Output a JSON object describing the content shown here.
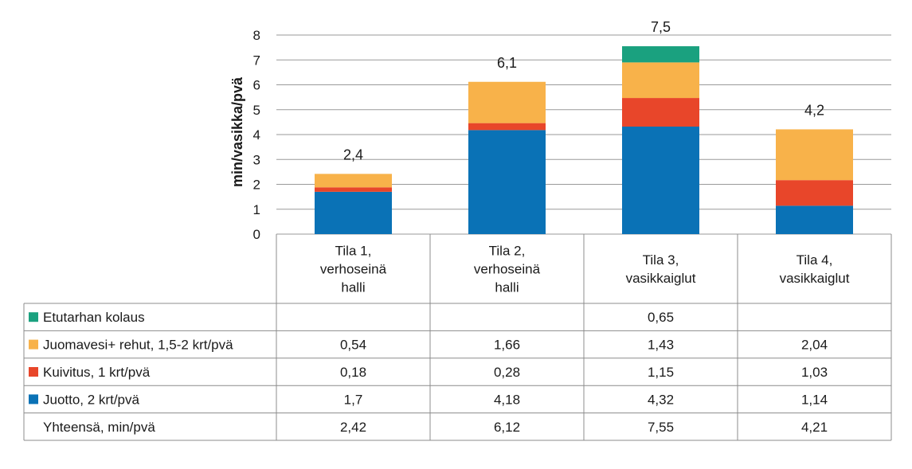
{
  "chart_data": {
    "type": "bar",
    "stacked": true,
    "ylabel": "min/vasikka/pvä",
    "ylim": [
      0,
      8
    ],
    "yticks": [
      "0",
      "1",
      "2",
      "3",
      "4",
      "5",
      "6",
      "7",
      "8"
    ],
    "grid": true,
    "categories": [
      "Tila 1, verhoseinä halli",
      "Tila 2, verhoseinä halli",
      "Tila 3, vasikkaiglut",
      "Tila 4, vasikkaiglut"
    ],
    "category_lines": [
      [
        "Tila 1,",
        "verhoseinä",
        "halli"
      ],
      [
        "Tila 2,",
        "verhoseinä",
        "halli"
      ],
      [
        "Tila 3,",
        "vasikkaiglut"
      ],
      [
        "Tila 4,",
        "vasikkaiglut"
      ]
    ],
    "totals_labels": [
      "2,4",
      "6,1",
      "7,5",
      "4,2"
    ],
    "series": [
      {
        "name": "Juotto, 2 krt/pvä",
        "color": "#0a72b6",
        "values": [
          1.7,
          4.18,
          4.32,
          1.14
        ]
      },
      {
        "name": "Kuivitus,  1 krt/pvä",
        "color": "#e8462a",
        "values": [
          0.18,
          0.28,
          1.15,
          1.03
        ]
      },
      {
        "name": "Juomavesi+ rehut, 1,5-2 krt/pvä",
        "color": "#f8b24a",
        "values": [
          0.54,
          1.66,
          1.43,
          2.04
        ]
      },
      {
        "name": "Etutarhan kolaus",
        "color": "#1aa17f",
        "values": [
          null,
          null,
          0.65,
          null
        ]
      }
    ],
    "table": {
      "rows": [
        {
          "label": "Etutarhan kolaus",
          "color": "#1aa17f",
          "cells": [
            "",
            "",
            "0,65",
            ""
          ]
        },
        {
          "label": "Juomavesi+ rehut, 1,5-2 krt/pvä",
          "color": "#f8b24a",
          "cells": [
            "0,54",
            "1,66",
            "1,43",
            "2,04"
          ]
        },
        {
          "label": "Kuivitus,  1 krt/pvä",
          "color": "#e8462a",
          "cells": [
            "0,18",
            "0,28",
            "1,15",
            "1,03"
          ]
        },
        {
          "label": "Juotto, 2 krt/pvä",
          "color": "#0a72b6",
          "cells": [
            "1,7",
            "4,18",
            "4,32",
            "1,14"
          ]
        },
        {
          "label": "Yhteensä, min/pvä",
          "color": null,
          "cells": [
            "2,42",
            "6,12",
            "7,55",
            "4,21"
          ]
        }
      ]
    }
  }
}
